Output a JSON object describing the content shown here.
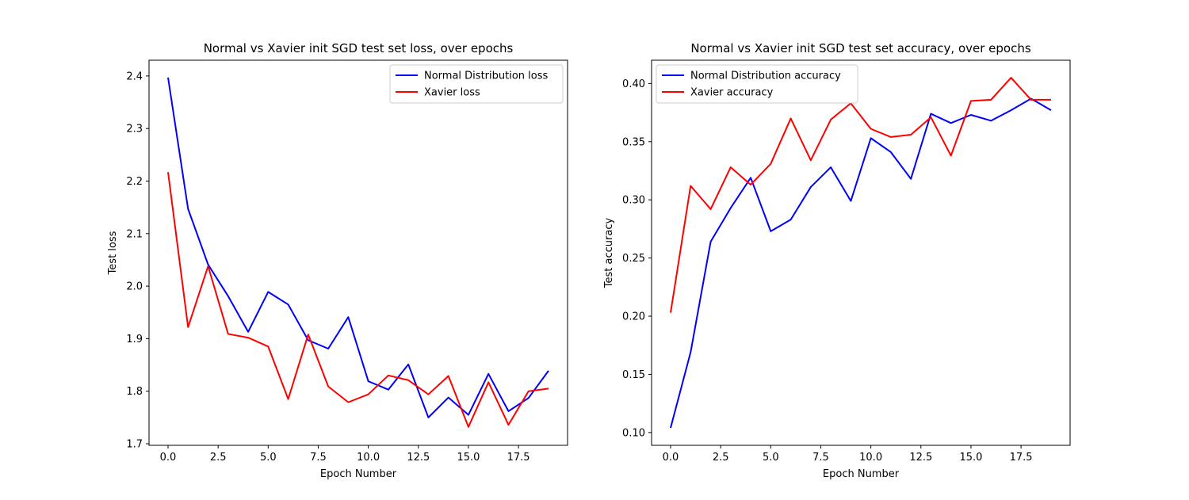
{
  "chart_data": [
    {
      "type": "line",
      "title": "Normal vs Xavier init SGD test set loss, over epochs",
      "xlabel": "Epoch Number",
      "ylabel": "Test loss",
      "xlim": [
        -0.95,
        19.95
      ],
      "ylim": [
        1.697,
        2.43
      ],
      "xticks": [
        0.0,
        2.5,
        5.0,
        7.5,
        10.0,
        12.5,
        15.0,
        17.5
      ],
      "xtick_labels": [
        "0.0",
        "2.5",
        "5.0",
        "7.5",
        "10.0",
        "12.5",
        "15.0",
        "17.5"
      ],
      "yticks": [
        1.7,
        1.8,
        1.9,
        2.0,
        2.1,
        2.2,
        2.3,
        2.4
      ],
      "ytick_labels": [
        "1.7",
        "1.8",
        "1.9",
        "2.0",
        "2.1",
        "2.2",
        "2.3",
        "2.4"
      ],
      "grid": false,
      "legend_position": "upper right",
      "x": [
        0,
        1,
        2,
        3,
        4,
        5,
        6,
        7,
        8,
        9,
        10,
        11,
        12,
        13,
        14,
        15,
        16,
        17,
        18,
        19
      ],
      "series": [
        {
          "name": "Normal Distribution loss",
          "color": "#0000ff",
          "values": [
            2.397,
            2.147,
            2.041,
            1.981,
            1.913,
            1.989,
            1.965,
            1.897,
            1.881,
            1.941,
            1.819,
            1.803,
            1.851,
            1.75,
            1.788,
            1.755,
            1.833,
            1.762,
            1.787,
            1.839
          ]
        },
        {
          "name": "Xavier loss",
          "color": "#ff0000",
          "values": [
            2.217,
            1.922,
            2.038,
            1.909,
            1.902,
            1.885,
            1.785,
            1.908,
            1.809,
            1.779,
            1.794,
            1.83,
            1.821,
            1.794,
            1.829,
            1.732,
            1.817,
            1.736,
            1.8,
            1.805
          ]
        }
      ]
    },
    {
      "type": "line",
      "title": "Normal vs Xavier init SGD test set accuracy, over epochs",
      "xlabel": "Epoch Number",
      "ylabel": "Test accuracy",
      "xlim": [
        -0.95,
        19.95
      ],
      "ylim": [
        0.089,
        0.42
      ],
      "xticks": [
        0.0,
        2.5,
        5.0,
        7.5,
        10.0,
        12.5,
        15.0,
        17.5
      ],
      "xtick_labels": [
        "0.0",
        "2.5",
        "5.0",
        "7.5",
        "10.0",
        "12.5",
        "15.0",
        "17.5"
      ],
      "yticks": [
        0.1,
        0.15,
        0.2,
        0.25,
        0.3,
        0.35,
        0.4
      ],
      "ytick_labels": [
        "0.10",
        "0.15",
        "0.20",
        "0.25",
        "0.30",
        "0.35",
        "0.40"
      ],
      "grid": false,
      "legend_position": "upper left",
      "x": [
        0,
        1,
        2,
        3,
        4,
        5,
        6,
        7,
        8,
        9,
        10,
        11,
        12,
        13,
        14,
        15,
        16,
        17,
        18,
        19
      ],
      "series": [
        {
          "name": "Normal Distribution accuracy",
          "color": "#0000ff",
          "values": [
            0.104,
            0.169,
            0.264,
            0.293,
            0.319,
            0.273,
            0.283,
            0.311,
            0.328,
            0.299,
            0.353,
            0.341,
            0.318,
            0.374,
            0.366,
            0.373,
            0.368,
            0.377,
            0.387,
            0.377
          ]
        },
        {
          "name": "Xavier accuracy",
          "color": "#ff0000",
          "values": [
            0.203,
            0.312,
            0.292,
            0.328,
            0.313,
            0.331,
            0.37,
            0.334,
            0.369,
            0.383,
            0.361,
            0.354,
            0.356,
            0.371,
            0.338,
            0.385,
            0.386,
            0.405,
            0.386,
            0.386
          ]
        }
      ]
    }
  ]
}
